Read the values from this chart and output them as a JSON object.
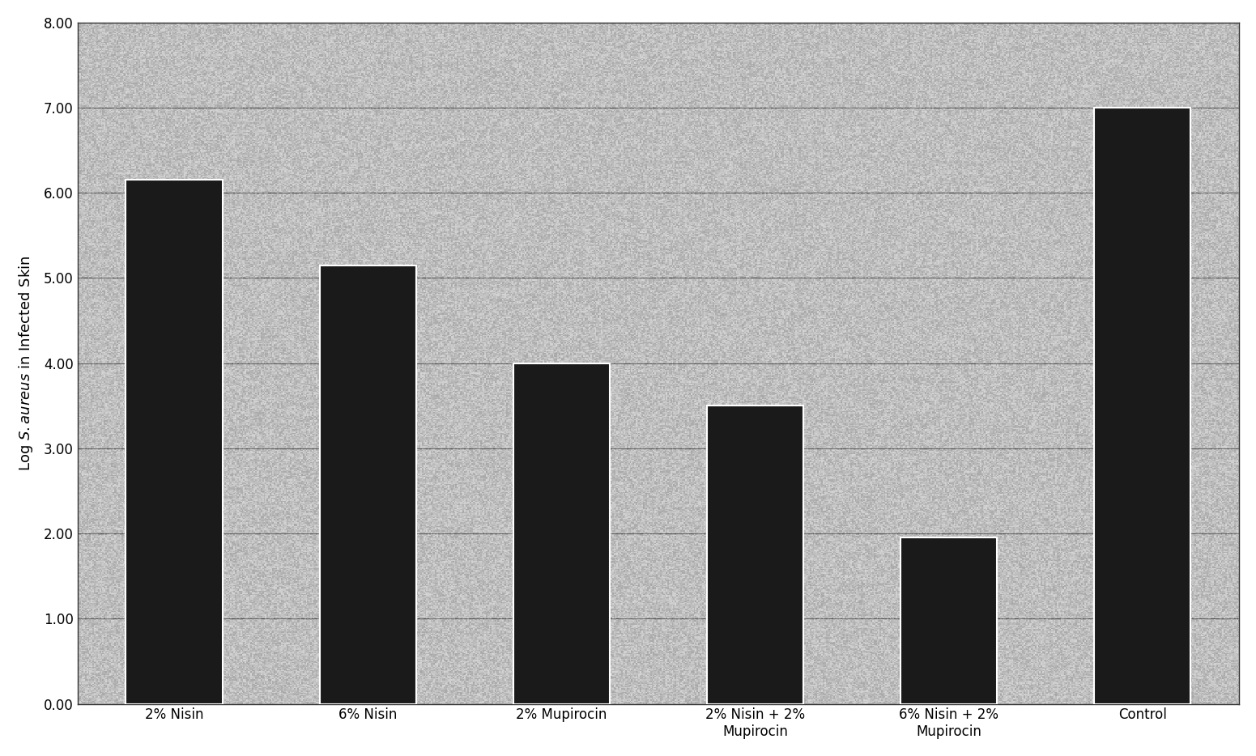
{
  "categories": [
    "2% Nisin",
    "6% Nisin",
    "2% Mupirocin",
    "2% Nisin + 2%\nMupirocin",
    "6% Nisin + 2%\nMupirocin",
    "Control"
  ],
  "values": [
    6.15,
    5.15,
    4.0,
    3.5,
    1.95,
    7.0
  ],
  "bar_color": "#1a1a1a",
  "bar_edge_color": "#ffffff",
  "bar_edge_width": 1.5,
  "ylabel": "Log $\\it{S. aureus}$ in Infected Skin",
  "ylim": [
    0,
    8.0
  ],
  "yticks": [
    0.0,
    1.0,
    2.0,
    3.0,
    4.0,
    5.0,
    6.0,
    7.0,
    8.0
  ],
  "ytick_labels": [
    "0.00",
    "1.00",
    "2.00",
    "3.00",
    "4.00",
    "5.00",
    "6.00",
    "7.00",
    "8.00"
  ],
  "figure_bg_color": "#ffffff",
  "plot_bg_color": "#b8b8b8",
  "grid_color": "#111111",
  "bar_width": 0.5,
  "axis_fontsize": 13,
  "tick_fontsize": 12,
  "noise_seed": 42,
  "noise_alpha": 0.45
}
